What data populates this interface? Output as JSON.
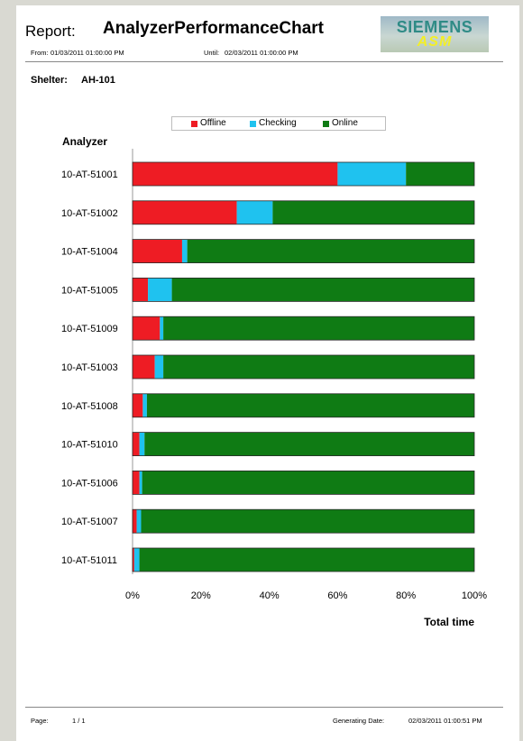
{
  "header": {
    "report_label": "Report:",
    "report_title": "AnalyzerPerformanceChart",
    "from_label": "From:",
    "from_value": "01/03/2011 01:00:00 PM",
    "until_label": "Until:",
    "until_value": "02/03/2011 01:00:00 PM",
    "logo_top": "SIEMENS",
    "logo_bottom": "ASM"
  },
  "shelter": {
    "label": "Shelter:",
    "value": "AH-101"
  },
  "footer": {
    "page_label": "Page:",
    "page_value": "1  /  1",
    "generating_label": "Generating Date:",
    "generating_value": "02/03/2011 01:00:51 PM"
  },
  "chart_data": {
    "type": "bar",
    "orientation": "horizontal",
    "stacked": "percent",
    "ylabel": "Analyzer",
    "xlabel": "Total time",
    "xlim": [
      0,
      100
    ],
    "xticks": [
      "0%",
      "20%",
      "40%",
      "60%",
      "80%",
      "100%"
    ],
    "legend_position": "top",
    "categories": [
      "10-AT-51001",
      "10-AT-51002",
      "10-AT-51004",
      "10-AT-51005",
      "10-AT-51009",
      "10-AT-51003",
      "10-AT-51008",
      "10-AT-51010",
      "10-AT-51006",
      "10-AT-51007",
      "10-AT-51011"
    ],
    "series": [
      {
        "name": "Offline",
        "color": "#ee1c24",
        "values": [
          60,
          30.5,
          14.5,
          4.5,
          8,
          6.5,
          3,
          2,
          2,
          1.2,
          0.5
        ]
      },
      {
        "name": "Checking",
        "color": "#1fc2ef",
        "values": [
          20,
          10.5,
          1.5,
          7,
          1,
          2.5,
          1.2,
          1.5,
          0.8,
          1.3,
          1.5
        ]
      },
      {
        "name": "Online",
        "color": "#0f7b14",
        "values": [
          20,
          59,
          84,
          88.5,
          91,
          91,
          95.8,
          96.5,
          97.2,
          97.5,
          98
        ]
      }
    ]
  }
}
